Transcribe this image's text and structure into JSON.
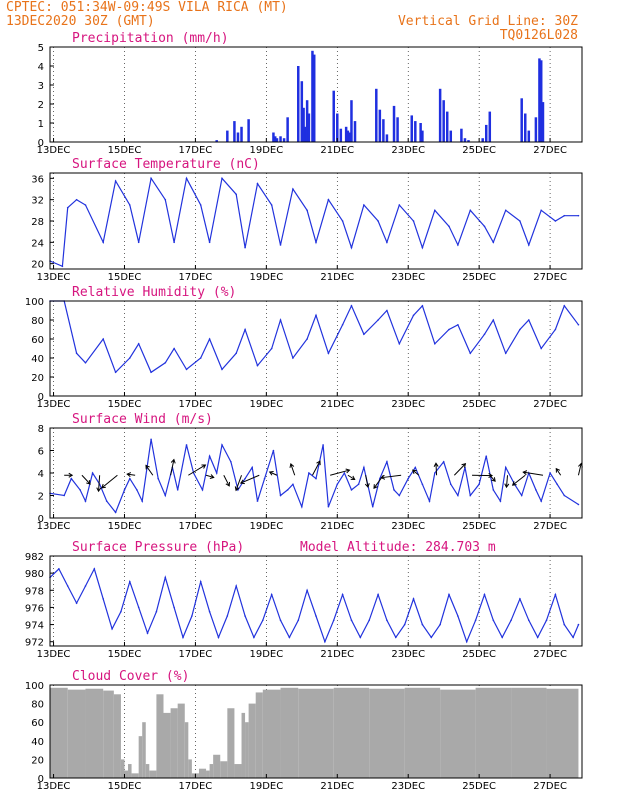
{
  "header": {
    "line1": "CPTEC:   051:34W-09:49S  VILA RICA (MT)",
    "line2": "13DEC2020 30Z (GMT)",
    "grid_note": "Vertical Grid Line: 30Z",
    "code": "TQ0126L028"
  },
  "colors": {
    "header": "#e8731a",
    "title": "#d6157f",
    "series": "#2233dd",
    "bars": "#1f2fe0",
    "cloud": "#a9a9a9"
  },
  "x_ticks": [
    "13DEC",
    "15DEC",
    "17DEC",
    "19DEC",
    "21DEC",
    "23DEC",
    "25DEC",
    "27DEC"
  ],
  "chart_data": [
    {
      "type": "bar",
      "title": "Precipitation (mm/h)",
      "ylim": [
        0,
        5
      ],
      "yticks": [
        "0",
        "1",
        "2",
        "3",
        "4",
        "5"
      ],
      "grid": true,
      "x_days": [
        4.7,
        5.0,
        5.2,
        5.3,
        5.4,
        5.6,
        6.3,
        6.35,
        6.4,
        6.5,
        6.6,
        6.7,
        7.0,
        7.1,
        7.15,
        7.2,
        7.25,
        7.3,
        7.4,
        7.45,
        8.0,
        8.1,
        8.2,
        8.35,
        8.4,
        8.45,
        8.5,
        8.6,
        9.2,
        9.3,
        9.4,
        9.5,
        9.7,
        9.8,
        10.2,
        10.3,
        10.45,
        10.5,
        11.0,
        11.1,
        11.2,
        11.3,
        11.6,
        11.7,
        11.8,
        12.2,
        12.3,
        12.4,
        13.3,
        13.4,
        13.5,
        13.7,
        13.8,
        13.85,
        13.9
      ],
      "values": [
        0.1,
        0.6,
        1.1,
        0.5,
        0.8,
        1.2,
        0.5,
        0.3,
        0.2,
        0.3,
        0.2,
        1.3,
        4.0,
        3.2,
        1.8,
        0.8,
        2.2,
        1.5,
        4.8,
        4.6,
        2.7,
        1.5,
        0.7,
        0.8,
        0.6,
        0.5,
        2.2,
        1.1,
        2.8,
        1.7,
        1.2,
        0.4,
        1.9,
        1.3,
        1.4,
        1.1,
        1.0,
        0.6,
        2.8,
        2.2,
        1.6,
        0.6,
        0.7,
        0.2,
        0.1,
        0.2,
        0.9,
        1.6,
        2.3,
        1.5,
        0.6,
        1.3,
        4.4,
        4.3,
        2.1
      ]
    },
    {
      "type": "line",
      "title": "Surface Temperature (nC)",
      "ylim": [
        19,
        37
      ],
      "yticks": [
        "20",
        "24",
        "28",
        "32",
        "36"
      ],
      "grid": true,
      "x_days": [
        0.0,
        0.35,
        0.5,
        0.75,
        1.0,
        1.5,
        1.85,
        2.25,
        2.5,
        2.85,
        3.25,
        3.5,
        3.85,
        4.25,
        4.5,
        4.85,
        5.25,
        5.5,
        5.85,
        6.25,
        6.5,
        6.85,
        7.25,
        7.5,
        7.85,
        8.25,
        8.5,
        8.85,
        9.25,
        9.5,
        9.85,
        10.25,
        10.5,
        10.85,
        11.25,
        11.5,
        11.85,
        12.25,
        12.5,
        12.85,
        13.25,
        13.5,
        13.85,
        14.25,
        14.5,
        14.9
      ],
      "values": [
        20.5,
        19.5,
        30.5,
        32,
        31,
        24,
        35.5,
        31,
        24,
        36,
        32,
        24,
        36,
        31,
        24,
        36,
        33,
        23,
        35,
        31,
        23.5,
        34,
        30,
        24,
        32,
        28,
        23,
        31,
        28,
        24,
        31,
        28,
        23,
        30,
        27,
        23.5,
        30,
        27,
        24,
        30,
        28,
        23.5,
        30,
        28,
        29,
        29
      ]
    },
    {
      "type": "line",
      "title": "Relative Humidity (%)",
      "ylim": [
        0,
        100
      ],
      "yticks": [
        "0",
        "20",
        "40",
        "60",
        "80",
        "100"
      ],
      "grid": true,
      "x_days": [
        0.0,
        0.4,
        0.75,
        1.0,
        1.5,
        1.85,
        2.25,
        2.5,
        2.85,
        3.25,
        3.5,
        3.85,
        4.25,
        4.5,
        4.85,
        5.25,
        5.5,
        5.85,
        6.25,
        6.5,
        6.85,
        7.25,
        7.5,
        7.85,
        8.25,
        8.5,
        8.85,
        9.25,
        9.5,
        9.85,
        10.25,
        10.5,
        10.85,
        11.25,
        11.5,
        11.85,
        12.25,
        12.5,
        12.85,
        13.25,
        13.5,
        13.85,
        14.25,
        14.5,
        14.9
      ],
      "values": [
        100,
        100,
        45,
        35,
        60,
        25,
        40,
        55,
        25,
        35,
        50,
        28,
        40,
        60,
        28,
        45,
        70,
        32,
        50,
        80,
        40,
        60,
        85,
        45,
        75,
        95,
        65,
        80,
        90,
        55,
        85,
        95,
        55,
        70,
        75,
        45,
        65,
        80,
        45,
        70,
        80,
        50,
        70,
        95,
        75
      ]
    },
    {
      "type": "line",
      "title": "Surface Wind (m/s)",
      "ylim": [
        0,
        8
      ],
      "yticks": [
        "0",
        "2",
        "4",
        "6",
        "8"
      ],
      "grid": true,
      "x_days": [
        0.0,
        0.4,
        0.6,
        0.85,
        1.0,
        1.2,
        1.4,
        1.6,
        1.85,
        2.1,
        2.25,
        2.45,
        2.6,
        2.85,
        3.05,
        3.25,
        3.45,
        3.6,
        3.85,
        4.05,
        4.3,
        4.5,
        4.7,
        4.85,
        5.1,
        5.3,
        5.5,
        5.7,
        5.85,
        6.05,
        6.3,
        6.5,
        6.7,
        6.85,
        7.1,
        7.3,
        7.5,
        7.7,
        7.85,
        8.1,
        8.3,
        8.5,
        8.7,
        8.85,
        9.1,
        9.3,
        9.5,
        9.7,
        9.85,
        10.1,
        10.3,
        10.5,
        10.7,
        10.85,
        11.1,
        11.3,
        11.5,
        11.7,
        11.85,
        12.1,
        12.3,
        12.5,
        12.7,
        12.85,
        13.1,
        13.3,
        13.5,
        13.7,
        13.85,
        14.1,
        14.3,
        14.5,
        14.9
      ],
      "values": [
        2.2,
        2.0,
        3.5,
        2.5,
        1.5,
        4.0,
        3.0,
        1.5,
        0.5,
        2.5,
        3.5,
        2.5,
        1.5,
        7.0,
        3.5,
        2.0,
        4.5,
        2.5,
        6.5,
        4.0,
        2.5,
        5.5,
        4.0,
        6.5,
        5.0,
        2.5,
        3.5,
        4.5,
        1.5,
        3.5,
        6.0,
        2.0,
        2.5,
        3.0,
        1.0,
        4.0,
        3.5,
        6.5,
        1.0,
        3.0,
        4.0,
        2.5,
        3.0,
        4.5,
        1.0,
        3.5,
        5.0,
        2.5,
        2.0,
        3.5,
        4.5,
        3.0,
        1.5,
        4.0,
        5.0,
        3.0,
        2.0,
        4.5,
        2.0,
        3.0,
        5.5,
        2.5,
        1.5,
        4.5,
        3.0,
        2.0,
        4.0,
        2.5,
        1.5,
        4.0,
        3.0,
        2.0,
        1.2
      ]
    },
    {
      "type": "line",
      "title": "Surface Pressure (hPa)",
      "subtitle": "Model Altitude: 284.703 m",
      "ylim": [
        971.5,
        982
      ],
      "yticks": [
        "972",
        "974",
        "976",
        "978",
        "980",
        "982"
      ],
      "grid": true,
      "x_days": [
        0.0,
        0.25,
        0.5,
        0.75,
        1.0,
        1.25,
        1.5,
        1.75,
        2.0,
        2.25,
        2.5,
        2.75,
        3.0,
        3.25,
        3.5,
        3.75,
        4.0,
        4.25,
        4.5,
        4.75,
        5.0,
        5.25,
        5.5,
        5.75,
        6.0,
        6.25,
        6.5,
        6.75,
        7.0,
        7.25,
        7.5,
        7.75,
        8.0,
        8.25,
        8.5,
        8.75,
        9.0,
        9.25,
        9.5,
        9.75,
        10.0,
        10.25,
        10.5,
        10.75,
        11.0,
        11.25,
        11.5,
        11.75,
        12.0,
        12.25,
        12.5,
        12.75,
        13.0,
        13.25,
        13.5,
        13.75,
        14.0,
        14.25,
        14.5,
        14.75,
        14.9
      ],
      "values": [
        979.5,
        980.5,
        978.5,
        976.5,
        978.5,
        980.5,
        977,
        973.5,
        975.5,
        979,
        976,
        973,
        975.5,
        979.5,
        976,
        972.5,
        975,
        979,
        975.5,
        972.5,
        975,
        978.5,
        975,
        972.5,
        974.5,
        977.5,
        974.5,
        972.5,
        974.5,
        978,
        975,
        972,
        974.5,
        977.5,
        974.5,
        972.5,
        974.5,
        977.5,
        974.5,
        972.5,
        974,
        977,
        974,
        972.5,
        974,
        977.5,
        975,
        972,
        974.5,
        977.5,
        974.5,
        972.5,
        974.5,
        977,
        974.5,
        972.5,
        974.5,
        977.5,
        974,
        972.5,
        974
      ]
    },
    {
      "type": "area",
      "title": "Cloud Cover (%)",
      "ylim": [
        0,
        100
      ],
      "yticks": [
        "0",
        "20",
        "40",
        "60",
        "80",
        "100"
      ],
      "grid": true,
      "x_days": [
        0.0,
        0.5,
        1.0,
        1.5,
        1.8,
        2.0,
        2.1,
        2.2,
        2.3,
        2.5,
        2.6,
        2.7,
        2.8,
        3.0,
        3.2,
        3.4,
        3.6,
        3.8,
        3.9,
        4.0,
        4.2,
        4.4,
        4.5,
        4.6,
        4.8,
        5.0,
        5.2,
        5.4,
        5.5,
        5.6,
        5.8,
        6.0,
        6.5,
        7.0,
        8.0,
        9.0,
        10.0,
        11.0,
        12.0,
        13.0,
        14.0,
        14.9
      ],
      "values": [
        97,
        95,
        96,
        94,
        90,
        20,
        8,
        15,
        5,
        45,
        60,
        15,
        8,
        90,
        70,
        75,
        80,
        60,
        20,
        5,
        10,
        8,
        15,
        25,
        18,
        75,
        15,
        70,
        60,
        80,
        92,
        95,
        97,
        96,
        97,
        96,
        97,
        95,
        97,
        97,
        96,
        97
      ]
    }
  ]
}
